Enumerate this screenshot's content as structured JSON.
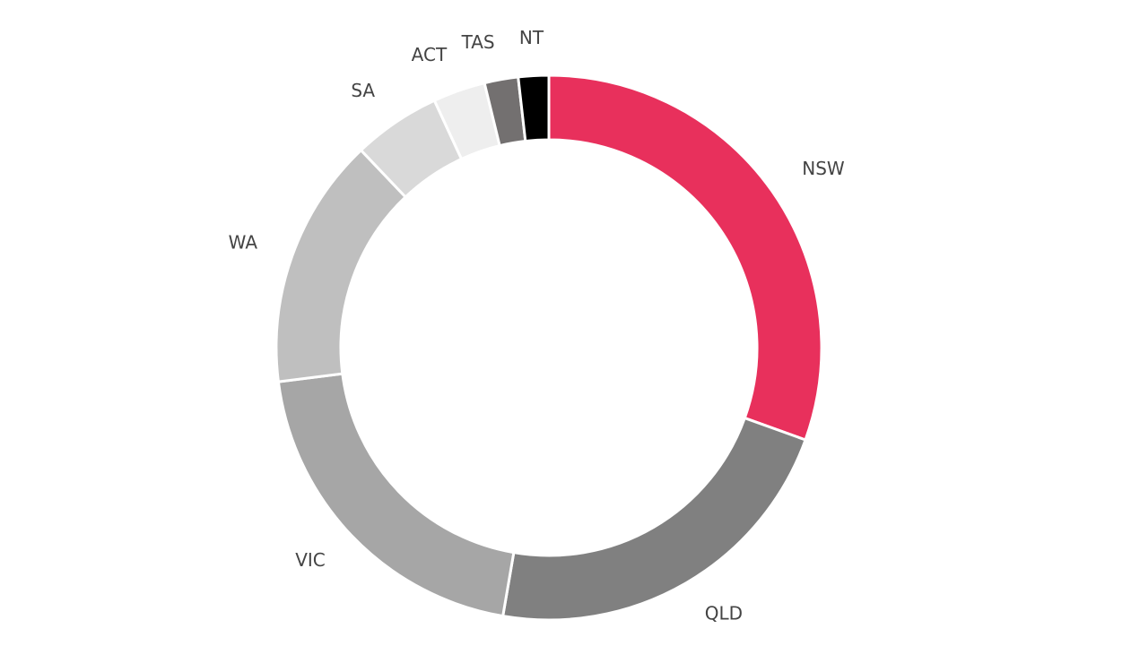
{
  "chart_data": {
    "type": "pie",
    "donut": true,
    "categories": [
      "NSW",
      "QLD",
      "VIC",
      "WA",
      "SA",
      "ACT",
      "TAS",
      "NT"
    ],
    "values": [
      30.5,
      22.2,
      20.3,
      14.9,
      5.2,
      3.1,
      2.0,
      1.8
    ],
    "colors": [
      "#e8305c",
      "#808080",
      "#a6a6a6",
      "#bfbfbf",
      "#d9d9d9",
      "#eeeeee",
      "#737070",
      "#000000"
    ]
  }
}
